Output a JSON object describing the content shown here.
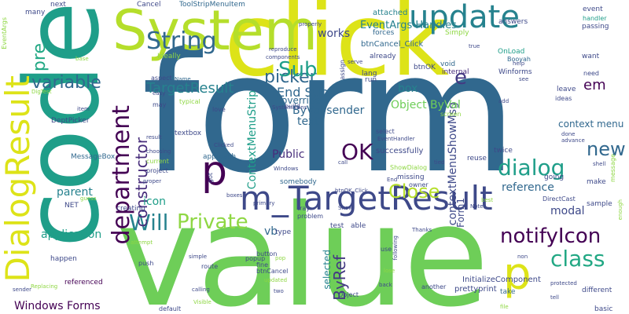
{
  "palette": {
    "yellow": "#dde318",
    "lime": "#b5de2b",
    "green": "#6ece58",
    "lightgreen": "#8fd744",
    "teal": "#1f9e89",
    "seagreen": "#22a884",
    "cyan": "#26828e",
    "blue": "#31688e",
    "slate": "#3e4989",
    "indigo": "#443983",
    "purple": "#472d7b",
    "dark": "#440154"
  },
  "words": [
    "form",
    "value",
    "code",
    "click",
    "System",
    "DialogResult",
    "m_TargetResult",
    "p",
    "update",
    "String",
    "dialog",
    "department",
    "notifyIcon",
    "class",
    "Will",
    "Private",
    "OK",
    "Close",
    "new",
    "picker",
    "Sub",
    "variable",
    "constructor",
    "TargetResult",
    "End Sub",
    "e",
    "ByRef",
    "Windows Forms",
    "ContextMenuStrip",
    "contextMenuShowMsg",
    "em",
    "pre",
    "application",
    "parent",
    "Object ByVal",
    "ByVal sender",
    "works",
    "text",
    "reference",
    "modal",
    "icon",
    "Public",
    "context menu",
    "box",
    "override",
    "vb",
    "C",
    "selected",
    "EventArgs Handles",
    "btnCancel_Click",
    "attached",
    "forces",
    "Simply",
    "ToolStripMenuItem",
    "Cancel",
    "event",
    "handler",
    "passing",
    "OnLoad",
    "Booyah",
    "Winforms",
    "internal",
    "btnOK",
    "void",
    "already",
    "Ideally",
    "aspect",
    "Name",
    "typical",
    "DeptPicker",
    "MessageBox",
    "NET",
    "textbox",
    "approach",
    "current",
    "creating",
    "happen",
    "referenced",
    "Replacing",
    "sender",
    "many",
    "next",
    "EventArgs",
    "DigTest",
    "SystemIcons",
    "Windows",
    "somebody",
    "successfully",
    "select",
    "EventHandler",
    "missing",
    "owner",
    "reuse",
    "ShowDialog",
    "Form1",
    "going",
    "DirectCast",
    "sample",
    "make",
    "done",
    "advance",
    "message",
    "shell",
    "twice",
    "answers",
    "properly",
    "help",
    "see",
    "ideas",
    "leave",
    "need",
    "want",
    "add",
    "run",
    "lang",
    "assign",
    "serve",
    "reproduce",
    "components",
    "easy",
    "may",
    "love",
    "result",
    "choosing",
    "project",
    "proper",
    "Clicked",
    "guess",
    "got",
    "btnOK_Click",
    "call",
    "tied",
    "true",
    "tray",
    "Show",
    "problem",
    "primary",
    "boxes",
    "best",
    "Note",
    "Thanks",
    "test",
    "able",
    "type",
    "pop",
    "popup",
    "button",
    "fine",
    "attempt",
    "push",
    "route",
    "simple",
    "btnCancel",
    "updated",
    "two",
    "calling",
    "Visible",
    "default",
    "take",
    "InitializeComponent",
    "prettyprint",
    "different",
    "basic",
    "tell",
    "file",
    "protected",
    "non",
    "following",
    "lose",
    "another",
    "back",
    "Object",
    "screen",
    "use",
    "End",
    "build",
    "item",
    "base",
    "enough",
    "Simple"
  ]
}
